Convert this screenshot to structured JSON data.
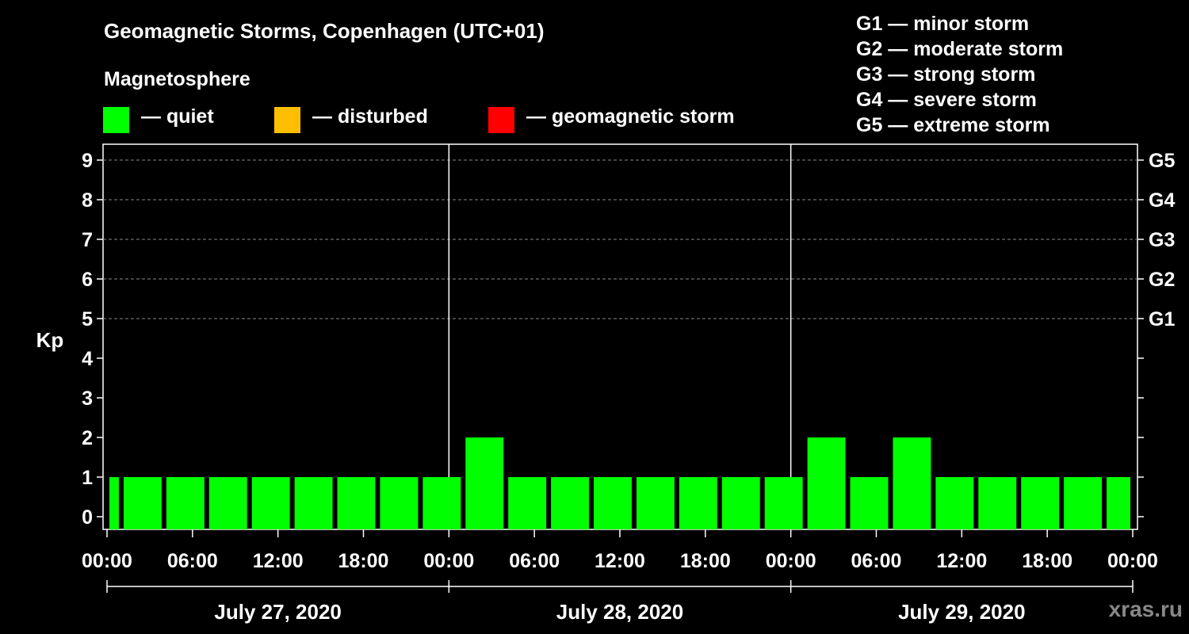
{
  "header": {
    "title": "Geomagnetic Storms, Copenhagen (UTC+01)",
    "legend_heading": "Magnetosphere",
    "legend": [
      {
        "label": "— quiet",
        "color": "#00ff00"
      },
      {
        "label": "— disturbed",
        "color": "#ffbf00"
      },
      {
        "label": "— geomagnetic storm",
        "color": "#ff0000"
      }
    ],
    "storm_scale": [
      "G1 — minor storm",
      "G2 — moderate storm",
      "G3 — strong storm",
      "G4 — severe storm",
      "G5 — extreme storm"
    ]
  },
  "watermark": "xras.ru",
  "chart_data": {
    "type": "bar",
    "title": "Geomagnetic Storms, Copenhagen (UTC+01)",
    "ylabel": "Kp",
    "ylim": [
      0,
      9
    ],
    "yticks": [
      0,
      1,
      2,
      3,
      4,
      5,
      6,
      7,
      8,
      9
    ],
    "right_ticks": [
      {
        "value": 5,
        "label": "G1"
      },
      {
        "value": 6,
        "label": "G2"
      },
      {
        "value": 7,
        "label": "G3"
      },
      {
        "value": 8,
        "label": "G4"
      },
      {
        "value": 9,
        "label": "G5"
      }
    ],
    "grid": true,
    "x_start": "2020-07-27 00:00",
    "x_end": "2020-07-30 00:00",
    "x_tick_labels": [
      "00:00",
      "06:00",
      "12:00",
      "18:00",
      "00:00",
      "06:00",
      "12:00",
      "18:00",
      "00:00",
      "06:00",
      "12:00",
      "18:00",
      "00:00"
    ],
    "days": [
      "July 27, 2020",
      "July 28, 2020",
      "July 29, 2020"
    ],
    "bars": [
      {
        "start": "2020-07-27 00:00",
        "end": "2020-07-27 01:00",
        "kp": 1
      },
      {
        "start": "2020-07-27 01:00",
        "end": "2020-07-27 04:00",
        "kp": 1
      },
      {
        "start": "2020-07-27 04:00",
        "end": "2020-07-27 07:00",
        "kp": 1
      },
      {
        "start": "2020-07-27 07:00",
        "end": "2020-07-27 10:00",
        "kp": 1
      },
      {
        "start": "2020-07-27 10:00",
        "end": "2020-07-27 13:00",
        "kp": 1
      },
      {
        "start": "2020-07-27 13:00",
        "end": "2020-07-27 16:00",
        "kp": 1
      },
      {
        "start": "2020-07-27 16:00",
        "end": "2020-07-27 19:00",
        "kp": 1
      },
      {
        "start": "2020-07-27 19:00",
        "end": "2020-07-27 22:00",
        "kp": 1
      },
      {
        "start": "2020-07-27 22:00",
        "end": "2020-07-28 01:00",
        "kp": 1
      },
      {
        "start": "2020-07-28 01:00",
        "end": "2020-07-28 04:00",
        "kp": 2
      },
      {
        "start": "2020-07-28 04:00",
        "end": "2020-07-28 07:00",
        "kp": 1
      },
      {
        "start": "2020-07-28 07:00",
        "end": "2020-07-28 10:00",
        "kp": 1
      },
      {
        "start": "2020-07-28 10:00",
        "end": "2020-07-28 13:00",
        "kp": 1
      },
      {
        "start": "2020-07-28 13:00",
        "end": "2020-07-28 16:00",
        "kp": 1
      },
      {
        "start": "2020-07-28 16:00",
        "end": "2020-07-28 19:00",
        "kp": 1
      },
      {
        "start": "2020-07-28 19:00",
        "end": "2020-07-28 22:00",
        "kp": 1
      },
      {
        "start": "2020-07-28 22:00",
        "end": "2020-07-29 01:00",
        "kp": 1
      },
      {
        "start": "2020-07-29 01:00",
        "end": "2020-07-29 04:00",
        "kp": 2
      },
      {
        "start": "2020-07-29 04:00",
        "end": "2020-07-29 07:00",
        "kp": 1
      },
      {
        "start": "2020-07-29 07:00",
        "end": "2020-07-29 10:00",
        "kp": 2
      },
      {
        "start": "2020-07-29 10:00",
        "end": "2020-07-29 13:00",
        "kp": 1
      },
      {
        "start": "2020-07-29 13:00",
        "end": "2020-07-29 16:00",
        "kp": 1
      },
      {
        "start": "2020-07-29 16:00",
        "end": "2020-07-29 19:00",
        "kp": 1
      },
      {
        "start": "2020-07-29 19:00",
        "end": "2020-07-29 22:00",
        "kp": 1
      },
      {
        "start": "2020-07-29 22:00",
        "end": "2020-07-30 00:00",
        "kp": 1
      }
    ],
    "bar_color": "#00ff00"
  }
}
